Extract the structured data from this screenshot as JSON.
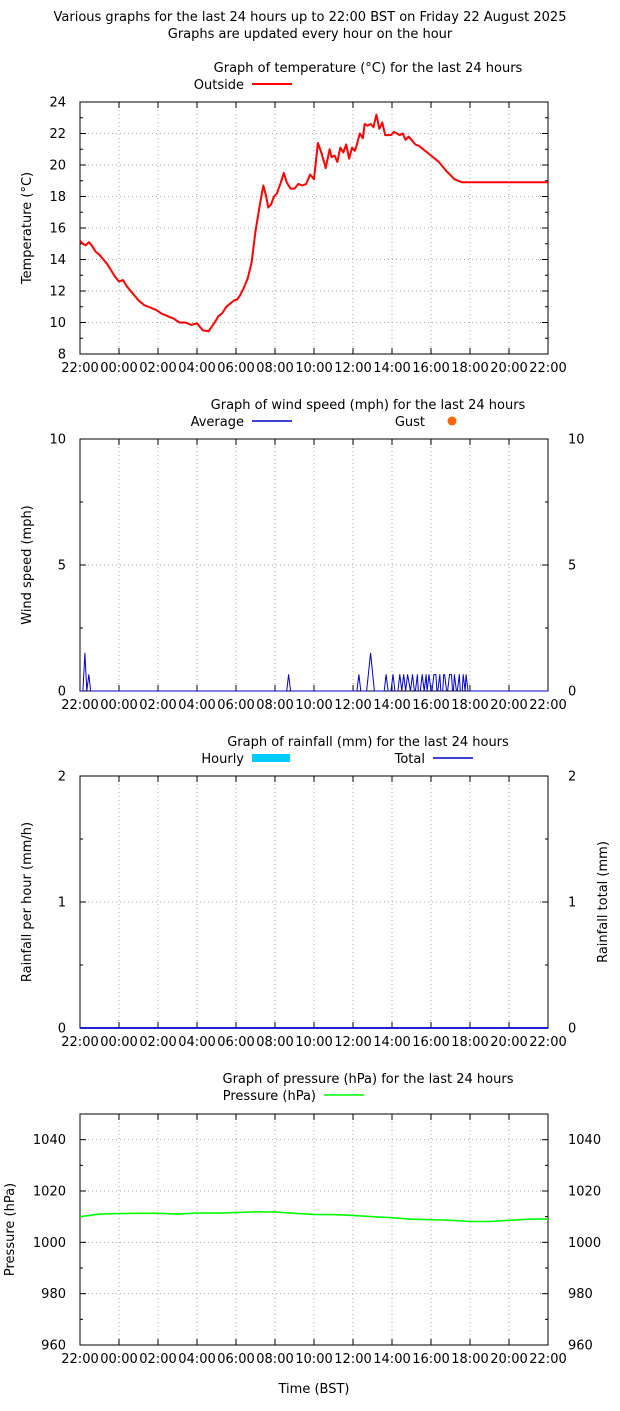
{
  "page": {
    "title_line1": "Various graphs for the last 24 hours up to 22:00 BST on Friday 22 August 2025",
    "title_line2": "Graphs are updated every hour on the hour"
  },
  "chart_data": [
    {
      "id": "temp",
      "type": "line",
      "title": "Graph of temperature (°C) for the last 24 hours",
      "xlabel": "",
      "ylabel": "Temperature (°C)",
      "xlim": [
        0,
        24
      ],
      "ylim": [
        8,
        24
      ],
      "yticks": [
        8,
        10,
        12,
        14,
        16,
        18,
        20,
        22,
        24
      ],
      "yticks_right": [],
      "xtick_labels": [
        "22:00",
        "00:00",
        "02:00",
        "04:00",
        "06:00",
        "08:00",
        "10:00",
        "12:00",
        "14:00",
        "16:00",
        "18:00",
        "20:00",
        "22:00"
      ],
      "grid": true,
      "legend": [
        {
          "label": "Outside",
          "color": "#ff0000",
          "style": "line"
        }
      ],
      "series": [
        {
          "name": "Outside",
          "color": "#ff0000",
          "x": [
            0,
            0.15,
            0.3,
            0.45,
            0.6,
            0.8,
            1.0,
            1.2,
            1.4,
            1.6,
            1.8,
            2.0,
            2.2,
            2.4,
            2.6,
            2.8,
            3.0,
            3.3,
            3.6,
            3.9,
            4.2,
            4.5,
            4.8,
            5.1,
            5.4,
            5.7,
            6.0,
            6.3,
            6.6,
            6.9,
            7.1,
            7.3,
            7.5,
            7.7,
            7.9,
            8.05,
            8.2,
            8.4,
            8.6,
            8.8,
            9.0,
            9.2,
            9.4,
            9.55,
            9.65,
            9.8,
            9.95,
            10.1,
            10.3,
            10.45,
            10.6,
            10.8,
            11.0,
            11.2,
            11.4,
            11.6,
            11.8,
            12.0,
            12.2,
            12.4,
            12.6,
            12.8,
            12.9,
            13.05,
            13.2,
            13.35,
            13.5,
            13.65,
            13.8,
            13.95,
            14.1,
            14.2,
            14.35,
            14.5,
            14.6,
            14.75,
            14.9,
            15.05,
            15.2,
            15.35,
            15.5,
            15.65,
            15.8,
            15.95,
            16.1,
            16.25,
            16.4,
            16.55,
            16.7,
            16.85,
            17.0,
            17.2,
            17.4,
            17.6,
            17.8,
            18.0,
            18.2,
            18.4,
            18.6,
            18.8,
            19.0,
            19.2,
            19.4,
            19.6,
            19.8,
            20.0,
            20.2,
            20.4,
            20.6,
            20.8,
            21.0,
            21.2,
            21.4,
            21.6,
            21.8,
            22.0,
            22.2,
            22.4,
            22.6,
            22.8,
            23.0,
            23.2,
            23.4,
            23.6,
            23.8,
            24.0
          ],
          "y": [
            15.2,
            15.0,
            14.9,
            15.1,
            14.9,
            14.5,
            14.3,
            14.0,
            13.7,
            13.3,
            12.9,
            12.6,
            12.7,
            12.3,
            12.0,
            11.7,
            11.4,
            11.1,
            10.95,
            10.8,
            10.55,
            10.4,
            10.25,
            10.0,
            10.0,
            9.85,
            9.95,
            9.5,
            9.45,
            10.0,
            10.4,
            10.6,
            11.0,
            11.2,
            11.4,
            11.45,
            11.7,
            12.2,
            12.8,
            13.8,
            15.8,
            17.3,
            18.7,
            18.0,
            17.3,
            17.5,
            18.0,
            18.2,
            18.9,
            19.5,
            18.9,
            18.5,
            18.5,
            18.8,
            18.7,
            18.8,
            19.4,
            19.1,
            21.4,
            20.7,
            19.8,
            21.0,
            20.5,
            20.6,
            20.2,
            21.1,
            20.8,
            21.3,
            20.4,
            21.1,
            20.9,
            21.3,
            22.0,
            21.7,
            22.6,
            22.5,
            22.6,
            22.4,
            23.2,
            22.3,
            22.7,
            21.9,
            21.9,
            21.9,
            22.1,
            22.0,
            21.9,
            22.0,
            21.6,
            21.8,
            21.6,
            21.3,
            21.2,
            21.0,
            20.8,
            20.6,
            20.4,
            20.2,
            19.9,
            19.6,
            19.35,
            19.1,
            19.0,
            18.9,
            18.9,
            18.9,
            18.9,
            18.9,
            18.9,
            18.9,
            18.9,
            18.9,
            18.9,
            18.9,
            18.9,
            18.9,
            18.9,
            18.9,
            18.9,
            18.9,
            18.9,
            18.9,
            18.9,
            18.9,
            18.9,
            18.9
          ]
        }
      ]
    },
    {
      "id": "wind",
      "type": "line",
      "title": "Graph of wind speed (mph) for the last 24 hours",
      "xlabel": "",
      "ylabel": "Wind speed (mph)",
      "xlim": [
        0,
        24
      ],
      "ylim": [
        0,
        10
      ],
      "yticks": [
        0,
        5,
        10
      ],
      "yticks_right": [
        0,
        5,
        10
      ],
      "xtick_labels": [
        "22:00",
        "00:00",
        "02:00",
        "04:00",
        "06:00",
        "08:00",
        "10:00",
        "12:00",
        "14:00",
        "16:00",
        "18:00",
        "20:00",
        "22:00"
      ],
      "grid": true,
      "legend": [
        {
          "label": "Average",
          "color": "#0000cc",
          "style": "line"
        },
        {
          "label": "Gust",
          "color": "#ff6600",
          "style": "dot"
        }
      ],
      "series": [
        {
          "name": "Average",
          "color": "#0000cc",
          "x": [
            0,
            0.15,
            0.25,
            0.35,
            0.45,
            0.55,
            10.6,
            10.7,
            10.8,
            14.2,
            14.3,
            14.4,
            14.7,
            14.9,
            15.1,
            15.6,
            15.7,
            15.8,
            15.95,
            16.05,
            16.15,
            16.3,
            16.4,
            16.5,
            16.6,
            16.7,
            16.8,
            16.95,
            17.05,
            17.15,
            17.2,
            17.3,
            17.35,
            17.45,
            17.55,
            17.65,
            17.75,
            17.8,
            17.9,
            18.0,
            18.05,
            18.15,
            18.25,
            18.3,
            18.35,
            18.45,
            18.5,
            18.6,
            18.65,
            18.7,
            18.8,
            18.85,
            18.95,
            19.05,
            19.1,
            19.15,
            19.2,
            19.3,
            19.35,
            19.45,
            19.5,
            19.6,
            19.65,
            19.75,
            19.8,
            19.9,
            20.0,
            24.0
          ],
          "y": [
            0,
            0,
            1.5,
            0,
            0.65,
            0,
            0,
            0.65,
            0,
            0,
            0.65,
            0,
            0,
            1.5,
            0,
            0,
            0.65,
            0,
            0,
            0.65,
            0,
            0,
            0.65,
            0,
            0.65,
            0,
            0.65,
            0,
            0.65,
            0,
            0,
            0.65,
            0,
            0,
            0.65,
            0,
            0.65,
            0,
            0.65,
            0,
            0,
            0.65,
            0.65,
            0,
            0,
            0.65,
            0,
            0,
            0.65,
            0.65,
            0,
            0,
            0.65,
            0.65,
            0,
            0,
            0.65,
            0,
            0,
            0.65,
            0,
            0,
            0.65,
            0,
            0.65,
            0,
            0,
            0
          ]
        }
      ]
    },
    {
      "id": "rain",
      "type": "line",
      "title": "Graph of rainfall (mm) for the last 24 hours",
      "xlabel": "",
      "ylabel": "Rainfall per hour (mm/h)",
      "y2label": "Rainfall total (mm)",
      "xlim": [
        0,
        24
      ],
      "ylim": [
        0,
        2
      ],
      "yticks": [
        0,
        1,
        2
      ],
      "yticks_right": [
        0,
        1,
        2
      ],
      "xtick_labels": [
        "22:00",
        "00:00",
        "02:00",
        "04:00",
        "06:00",
        "08:00",
        "10:00",
        "12:00",
        "14:00",
        "16:00",
        "18:00",
        "20:00",
        "22:00"
      ],
      "grid": true,
      "legend": [
        {
          "label": "Hourly",
          "color": "#00ccff",
          "style": "bar"
        },
        {
          "label": "Total",
          "color": "#0000cc",
          "style": "line"
        }
      ],
      "series": [
        {
          "name": "Total",
          "color": "#0000cc",
          "x": [
            0,
            24
          ],
          "y": [
            0,
            0
          ]
        }
      ]
    },
    {
      "id": "pressure",
      "type": "line",
      "title": "Graph of pressure (hPa) for the last 24 hours",
      "xlabel": "Time (BST)",
      "ylabel": "Pressure (hPa)",
      "xlim": [
        0,
        24
      ],
      "ylim": [
        960,
        1050
      ],
      "yticks": [
        960,
        980,
        1000,
        1020,
        1040
      ],
      "yticks_right": [
        960,
        980,
        1000,
        1020,
        1040
      ],
      "xtick_labels": [
        "22:00",
        "00:00",
        "02:00",
        "04:00",
        "06:00",
        "08:00",
        "10:00",
        "12:00",
        "14:00",
        "16:00",
        "18:00",
        "20:00",
        "22:00"
      ],
      "grid": true,
      "legend": [
        {
          "label": "Pressure (hPa)",
          "color": "#00ff00",
          "style": "line"
        }
      ],
      "series": [
        {
          "name": "Pressure (hPa)",
          "color": "#00ff00",
          "x": [
            0,
            1,
            2,
            3,
            4,
            5,
            6,
            7,
            8,
            9,
            10,
            11,
            12,
            13,
            14,
            15,
            16,
            17,
            18,
            19,
            20,
            21,
            22,
            23,
            24
          ],
          "y": [
            1010,
            1011,
            1011.2,
            1011.3,
            1011.3,
            1011,
            1011.4,
            1011.4,
            1011.6,
            1011.9,
            1011.8,
            1011.3,
            1010.9,
            1010.8,
            1010.5,
            1010.0,
            1009.6,
            1009.0,
            1008.8,
            1008.6,
            1008.1,
            1008.1,
            1008.6,
            1009.0,
            1009.1
          ]
        }
      ]
    }
  ]
}
